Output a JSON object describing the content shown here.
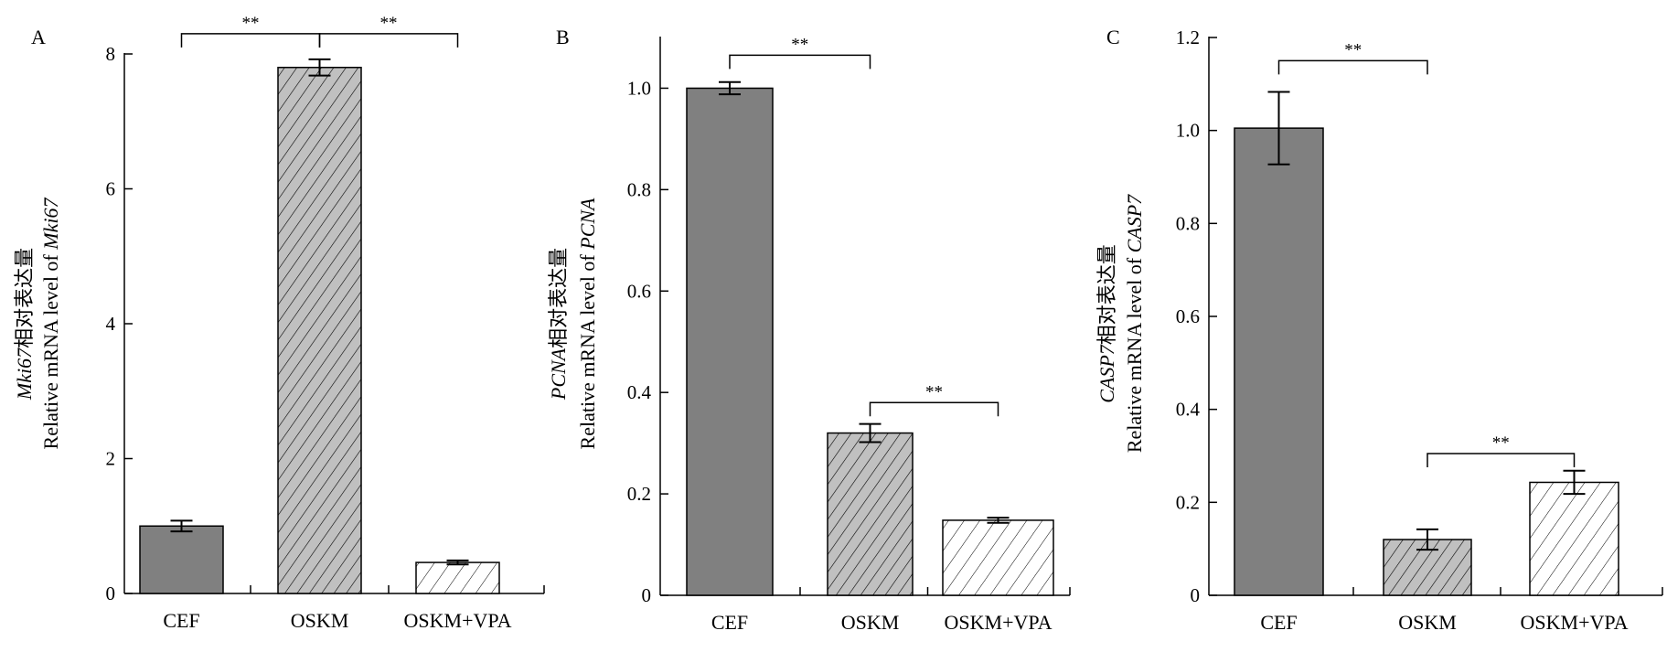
{
  "chart_data": [
    {
      "panel": "A",
      "type": "bar",
      "categories": [
        "CEF",
        "OSKM",
        "OSKM+VPA"
      ],
      "values": [
        1.0,
        7.8,
        0.46
      ],
      "errors": [
        0.08,
        0.12,
        0.03
      ],
      "patterns": [
        "solid",
        "hatch-dense",
        "hatch-sparse"
      ],
      "ylim": [
        0,
        8
      ],
      "yticks": [
        0,
        2,
        4,
        6,
        8
      ],
      "ytick_labels": [
        "0",
        "2",
        "4",
        "6",
        "8"
      ],
      "ylabel_line1_italic": "Mki67",
      "ylabel_line1_rest": "相对表达量",
      "ylabel_line2_prefix": "Relative mRNA level of ",
      "ylabel_line2_italic": "Mki67",
      "significance": [
        {
          "from": 0,
          "to": 1,
          "label": "**",
          "level": 8.3
        },
        {
          "from": 1,
          "to": 2,
          "label": "**",
          "level": 8.3
        }
      ]
    },
    {
      "panel": "B",
      "type": "bar",
      "categories": [
        "CEF",
        "OSKM",
        "OSKM+VPA"
      ],
      "values": [
        1.0,
        0.32,
        0.148
      ],
      "errors": [
        0.012,
        0.018,
        0.005
      ],
      "patterns": [
        "solid",
        "hatch-dense",
        "hatch-sparse"
      ],
      "ylim": [
        0,
        1.1
      ],
      "yticks": [
        0,
        0.2,
        0.4,
        0.6,
        0.8,
        1.0
      ],
      "ytick_labels": [
        "0",
        "0.2",
        "0.4",
        "0.6",
        "0.8",
        "1.0"
      ],
      "ylabel_line1_italic": "PCNA",
      "ylabel_line1_rest": "相对表达量",
      "ylabel_line2_prefix": "Relative mRNA level of ",
      "ylabel_line2_italic": "PCNA",
      "significance": [
        {
          "from": 0,
          "to": 1,
          "label": "**",
          "level": 1.065
        },
        {
          "from": 1,
          "to": 2,
          "label": "**",
          "level": 0.38
        }
      ]
    },
    {
      "panel": "C",
      "type": "bar",
      "categories": [
        "CEF",
        "OSKM",
        "OSKM+VPA"
      ],
      "values": [
        1.005,
        0.12,
        0.243
      ],
      "errors": [
        0.078,
        0.022,
        0.025
      ],
      "patterns": [
        "solid",
        "hatch-dense",
        "hatch-sparse"
      ],
      "ylim": [
        0,
        1.2
      ],
      "yticks": [
        0,
        0.2,
        0.4,
        0.6,
        0.8,
        1.0,
        1.2
      ],
      "ytick_labels": [
        "0",
        "0.2",
        "0.4",
        "0.6",
        "0.8",
        "1.0",
        "1.2"
      ],
      "ylabel_line1_italic": "CASP7",
      "ylabel_line1_rest": "相对表达量",
      "ylabel_line2_prefix": "Relative mRNA level of ",
      "ylabel_line2_italic": "CASP7",
      "significance": [
        {
          "from": 0,
          "to": 1,
          "label": "**",
          "level": 1.15
        },
        {
          "from": 1,
          "to": 2,
          "label": "**",
          "level": 0.305
        }
      ]
    }
  ],
  "colors": {
    "solid_fill": "#808080",
    "dense_hatch_bg": "#c0c0c0",
    "sparse_hatch_bg": "#ffffff",
    "axis": "#000000"
  }
}
